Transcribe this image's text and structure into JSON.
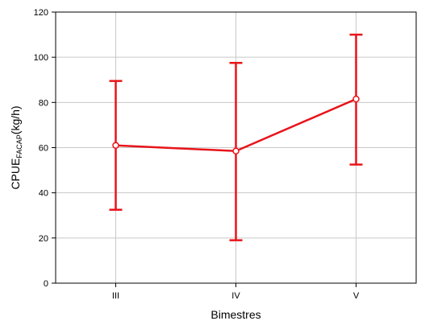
{
  "chart_data": {
    "type": "line",
    "x_title": "Bimestres",
    "y_title_main": "CPUE",
    "y_title_subscript": "FACAP",
    "y_title_unit": "(kg/h)",
    "categories": [
      "III",
      "IV",
      "V"
    ],
    "series": [
      {
        "values": [
          61,
          58.5,
          81.5
        ],
        "lower": [
          32.5,
          19,
          52.5
        ],
        "upper": [
          89.5,
          97.5,
          110
        ]
      }
    ],
    "ylim": [
      0,
      120
    ],
    "yticks": [
      0,
      20,
      40,
      60,
      80,
      100,
      120
    ],
    "grid": true,
    "legend": "none",
    "colors": {
      "series": "#e8141a",
      "grid": "#c8c8c8",
      "axis": "#000000",
      "marker_fill": "#ffffff"
    }
  }
}
